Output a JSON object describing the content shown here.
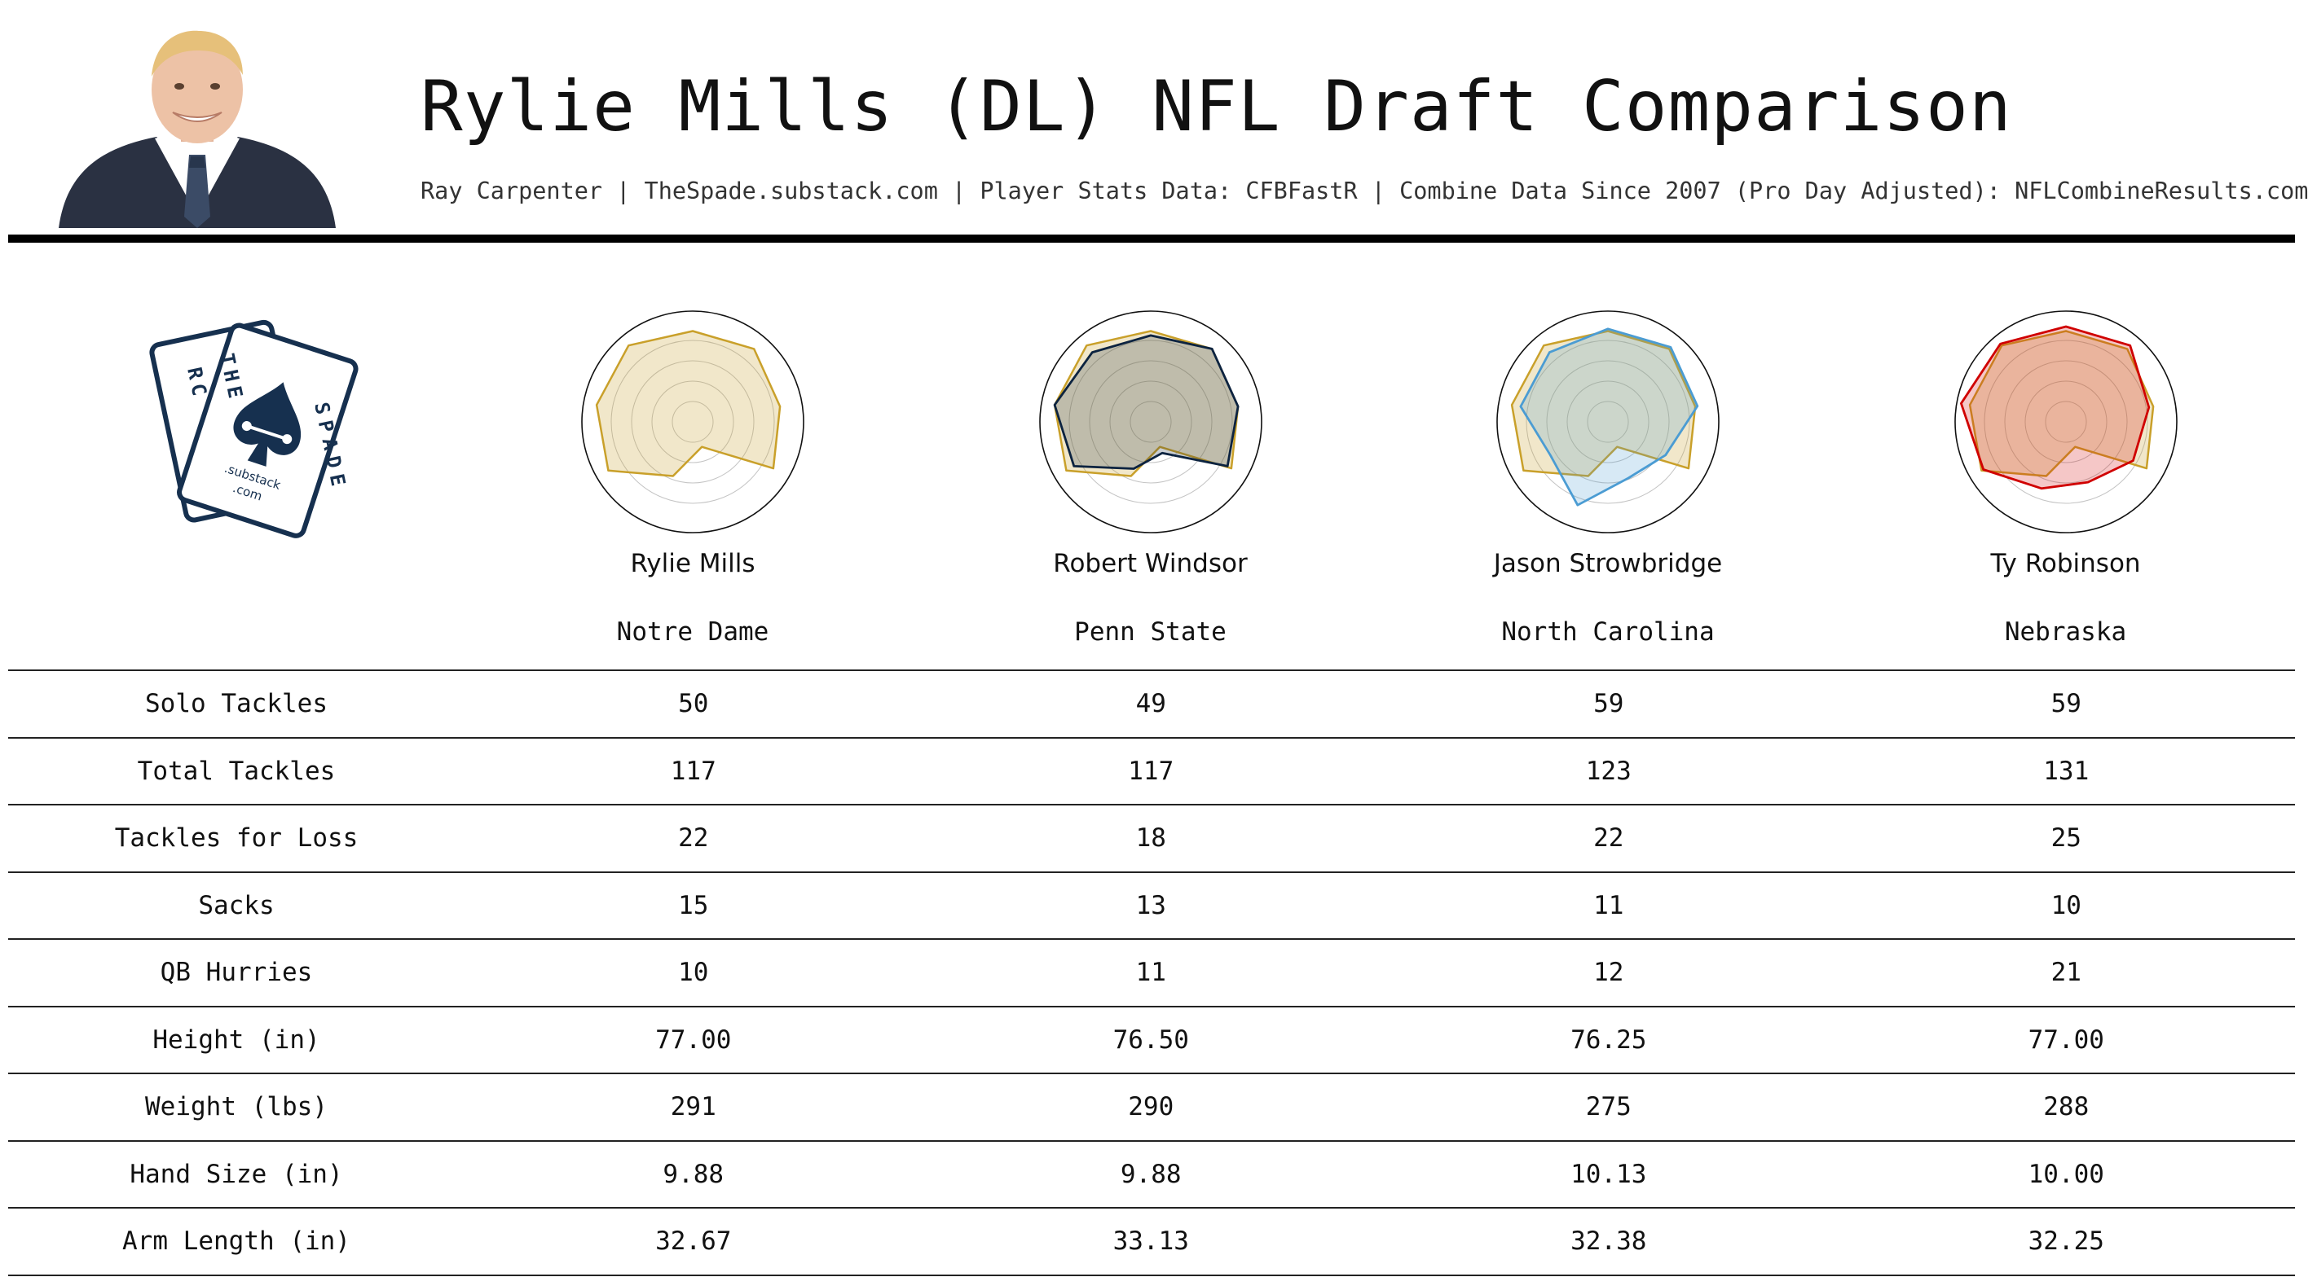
{
  "header": {
    "title": "Rylie Mills (DL) NFL Draft Comparison",
    "subtitle": "Ray Carpenter | TheSpade.substack.com | Player Stats Data: CFBFastR | Combine Data Since 2007 (Pro Day Adjusted): NFLCombineResults.com"
  },
  "logo": {
    "brand_top": "THE",
    "brand_side": "RC",
    "brand_bottom": "SPADE",
    "subtext_1": ".substack",
    "subtext_2": ".com"
  },
  "colors": {
    "base_player": "#c9a02a",
    "base_fill": "#f3e8c4",
    "windsor": "#0c2340",
    "strowbridge": "#4b9cd3",
    "robinson": "#d00000",
    "spade_navy": "#16304f"
  },
  "icons": {
    "headshot": "player-headshot-icon",
    "logo": "spade-cards-icon"
  },
  "players": [
    {
      "name": "Rylie Mills",
      "school": "Notre Dame"
    },
    {
      "name": "Robert Windsor",
      "school": "Penn State"
    },
    {
      "name": "Jason Strowbridge",
      "school": "North Carolina"
    },
    {
      "name": "Ty Robinson",
      "school": "Nebraska"
    }
  ],
  "table": {
    "rows": [
      {
        "label": "Solo Tackles",
        "values": [
          "50",
          "49",
          "59",
          "59"
        ]
      },
      {
        "label": "Total Tackles",
        "values": [
          "117",
          "117",
          "123",
          "131"
        ]
      },
      {
        "label": "Tackles for Loss",
        "values": [
          "22",
          "18",
          "22",
          "25"
        ]
      },
      {
        "label": "Sacks",
        "values": [
          "15",
          "13",
          "11",
          "10"
        ]
      },
      {
        "label": "QB Hurries",
        "values": [
          "10",
          "11",
          "12",
          "21"
        ]
      },
      {
        "label": "Height (in)",
        "values": [
          "77.00",
          "76.50",
          "76.25",
          "77.00"
        ]
      },
      {
        "label": "Weight (lbs)",
        "values": [
          "291",
          "290",
          "275",
          "288"
        ]
      },
      {
        "label": "Hand Size (in)",
        "values": [
          "9.88",
          "9.88",
          "10.13",
          "10.00"
        ]
      },
      {
        "label": "Arm Length (in)",
        "values": [
          "32.67",
          "33.13",
          "32.38",
          "32.25"
        ]
      }
    ]
  },
  "chart_data": {
    "type": "radar",
    "axes": [
      "Solo Tackles",
      "Total Tackles",
      "Tackles for Loss",
      "Sacks",
      "QB Hurries",
      "Height (in)",
      "Weight (lbs)",
      "Hand Size (in)",
      "Arm Length (in)"
    ],
    "rings": 4,
    "base_series": {
      "name": "Rylie Mills",
      "values": [
        0.82,
        0.86,
        0.8,
        0.84,
        0.24,
        0.52,
        0.88,
        0.88,
        0.9
      ]
    },
    "charts": [
      {
        "player": "Rylie Mills",
        "comparison": null
      },
      {
        "player": "Robert Windsor",
        "comparison": {
          "name": "Robert Windsor",
          "values": [
            0.78,
            0.86,
            0.8,
            0.8,
            0.3,
            0.45,
            0.8,
            0.88,
            0.82
          ]
        }
      },
      {
        "player": "Jason Strowbridge",
        "comparison": {
          "name": "Jason Strowbridge",
          "values": [
            0.84,
            0.88,
            0.82,
            0.6,
            0.54,
            0.8,
            0.6,
            0.8,
            0.82
          ]
        }
      },
      {
        "player": "Ty Robinson",
        "comparison": {
          "name": "Ty Robinson",
          "values": [
            0.86,
            0.9,
            0.76,
            0.7,
            0.58,
            0.64,
            0.86,
            0.96,
            0.92
          ]
        }
      }
    ]
  }
}
